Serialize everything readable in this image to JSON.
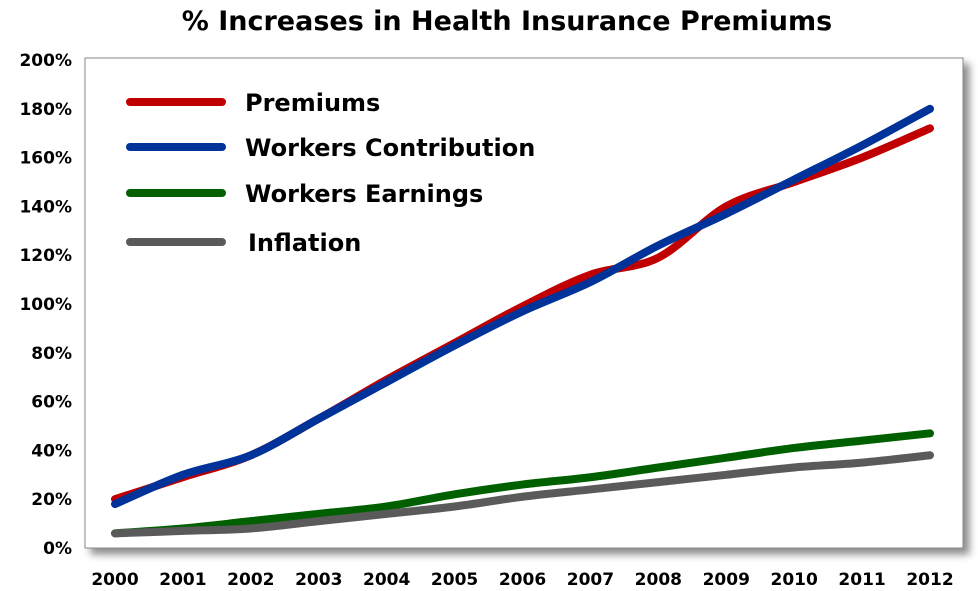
{
  "chart_data": {
    "type": "line",
    "title": "% Increases in Health Insurance Premiums",
    "xlabel": "",
    "ylabel": "",
    "x": [
      "2000",
      "2001",
      "2002",
      "2003",
      "2004",
      "2005",
      "2006",
      "2007",
      "2008",
      "2009",
      "2010",
      "2011",
      "2012"
    ],
    "yticks": [
      "0%",
      "20%",
      "40%",
      "60%",
      "80%",
      "100%",
      "120%",
      "140%",
      "160%",
      "180%",
      "200%"
    ],
    "ylim": [
      0,
      200
    ],
    "grid": false,
    "legend_placement": "top-left",
    "series": [
      {
        "name": "Premiums",
        "color": "#c00000",
        "values": [
          20,
          29,
          38,
          53,
          69,
          84,
          99,
          112,
          119,
          140,
          150,
          160,
          172
        ]
      },
      {
        "name": "Workers Contribution",
        "color": "#003399",
        "values": [
          18,
          30,
          38,
          53,
          68,
          83,
          97,
          109,
          124,
          137,
          151,
          165,
          180
        ]
      },
      {
        "name": "Workers Earnings",
        "color": "#006000",
        "values": [
          6,
          8,
          11,
          14,
          17,
          22,
          26,
          29,
          33,
          37,
          41,
          44,
          47
        ]
      },
      {
        "name": "Inflation",
        "color": "#5a5a5a",
        "values": [
          6,
          7,
          8,
          11,
          14,
          17,
          21,
          24,
          27,
          30,
          33,
          35,
          38
        ]
      }
    ]
  }
}
